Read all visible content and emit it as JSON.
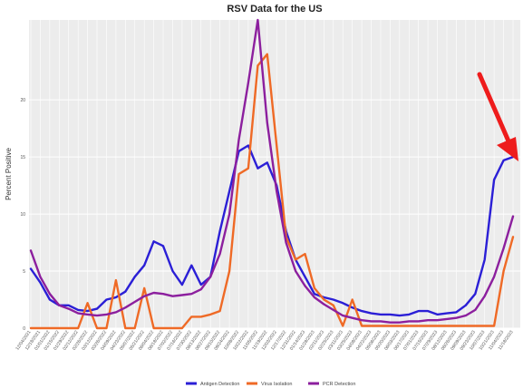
{
  "chart_data": {
    "type": "line",
    "title": "RSV Data for the US",
    "xlabel": "",
    "ylabel": "Percent Positive",
    "ylim": [
      0,
      27
    ],
    "yticks": [
      0,
      5,
      10,
      15,
      20
    ],
    "grid": true,
    "legend_position": "bottom",
    "x_labels": [
      "12/04/2021",
      "12/18/2021",
      "01/01/2022",
      "01/15/2022",
      "01/29/2022",
      "02/12/2022",
      "02/26/2022",
      "03/12/2022",
      "03/26/2022",
      "04/09/2022",
      "04/23/2022",
      "05/07/2022",
      "05/21/2022",
      "06/04/2022",
      "06/18/2022",
      "07/02/2022",
      "07/16/2022",
      "07/30/2022",
      "08/13/2022",
      "08/27/2022",
      "09/10/2022",
      "09/24/2022",
      "10/08/2022",
      "10/22/2022",
      "11/05/2022",
      "11/19/2022",
      "12/03/2022",
      "12/17/2022",
      "12/31/2022",
      "01/14/2023",
      "01/28/2023",
      "02/11/2023",
      "02/25/2023",
      "03/11/2023",
      "03/25/2023",
      "04/08/2023",
      "04/22/2023",
      "05/06/2023",
      "05/20/2023",
      "06/03/2023",
      "06/17/2023",
      "07/01/2023",
      "07/15/2023",
      "07/29/2023",
      "08/12/2023",
      "08/26/2023",
      "09/09/2023",
      "09/23/2023",
      "10/07/2023",
      "10/21/2023",
      "11/04/2023",
      "11/18/2023"
    ],
    "series": [
      {
        "name": "Antigen Detection",
        "color": "#2b1fd6",
        "values": [
          5.2,
          4,
          2.5,
          2,
          2,
          1.6,
          1.5,
          1.7,
          2.5,
          2.7,
          3.2,
          4.5,
          5.5,
          7.6,
          7.2,
          5,
          3.8,
          5.5,
          3.8,
          4.5,
          8.5,
          12,
          15.5,
          16,
          14,
          14.5,
          12.5,
          8.5,
          6,
          4.5,
          3,
          2.7,
          2.5,
          2.2,
          1.8,
          1.5,
          1.3,
          1.2,
          1.2,
          1.1,
          1.2,
          1.5,
          1.5,
          1.2,
          1.3,
          1.4,
          2,
          3,
          6,
          13,
          14.7,
          15
        ]
      },
      {
        "name": "Virus Isolation",
        "color": "#ef6a26",
        "values": [
          0,
          0,
          0,
          0,
          0,
          0,
          2.2,
          0,
          0,
          4.2,
          0,
          0,
          3.5,
          0,
          0,
          0,
          0,
          1,
          1,
          1.2,
          1.5,
          5,
          13.5,
          14,
          23,
          24,
          16,
          8,
          6,
          6.5,
          3.5,
          2.5,
          2,
          0.2,
          2.5,
          0.2,
          0.2,
          0.2,
          0.2,
          0.2,
          0.2,
          0.2,
          0.2,
          0.2,
          0.2,
          0.2,
          0.2,
          0.2,
          0.2,
          0.2,
          5,
          8
        ]
      },
      {
        "name": "PCR Detection",
        "color": "#8c1f9e",
        "values": [
          6.8,
          4.5,
          3,
          2,
          1.7,
          1.3,
          1.2,
          1.1,
          1.2,
          1.4,
          1.8,
          2.3,
          2.8,
          3.1,
          3,
          2.8,
          2.9,
          3,
          3.4,
          4.5,
          6.5,
          10,
          16.5,
          21.5,
          27,
          18,
          12,
          7.5,
          5,
          3.7,
          2.7,
          2.1,
          1.6,
          1.1,
          0.9,
          0.7,
          0.6,
          0.6,
          0.5,
          0.5,
          0.6,
          0.6,
          0.7,
          0.7,
          0.8,
          0.9,
          1.1,
          1.6,
          2.8,
          4.5,
          7,
          9.8
        ]
      }
    ],
    "annotation_color": "#ee1c1c"
  }
}
